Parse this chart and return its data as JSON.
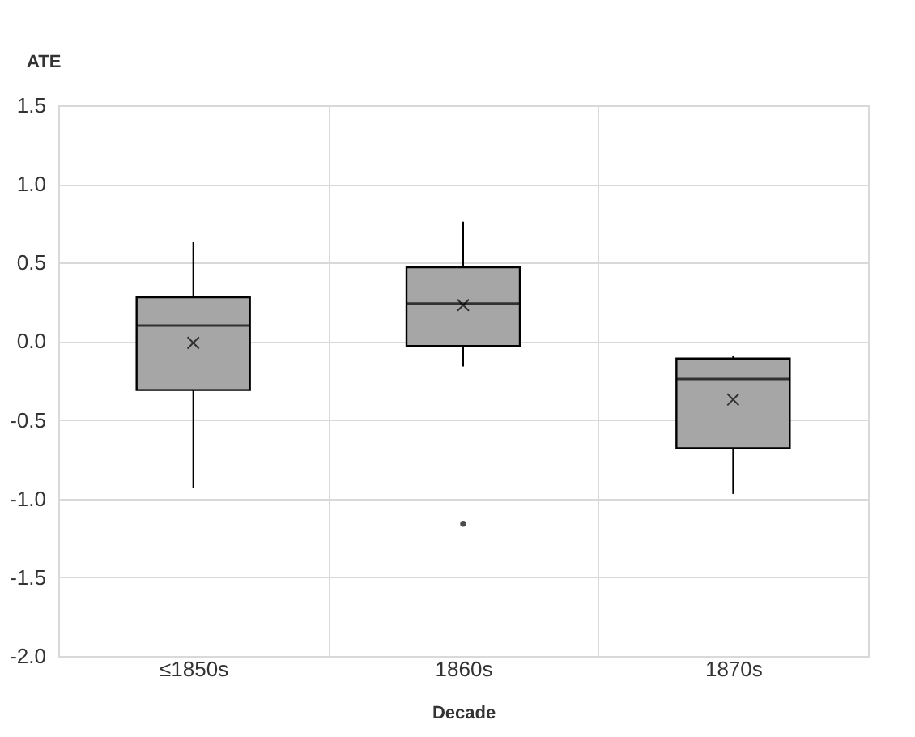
{
  "chart_data": {
    "type": "box",
    "xlabel": "Decade",
    "ylabel": "ATE",
    "categories": [
      "≤1850s",
      "1860s",
      "1870s"
    ],
    "boxes": [
      {
        "low": -0.93,
        "q1": -0.31,
        "median": 0.1,
        "q3": 0.28,
        "high": 0.63,
        "mean": -0.01
      },
      {
        "low": -0.16,
        "q1": -0.03,
        "median": 0.24,
        "q3": 0.47,
        "high": 0.76,
        "mean": 0.23,
        "outliers": [
          -1.16
        ]
      },
      {
        "low": -0.97,
        "q1": -0.68,
        "median": -0.24,
        "q3": -0.11,
        "high": -0.09,
        "mean": -0.37
      }
    ],
    "color": "#a6a6a6",
    "ylim": [
      -2.0,
      1.5
    ],
    "yticks": [
      {
        "value": -2,
        "label": "-2.0"
      },
      -1.5,
      {
        "value": -1,
        "label": "-1.0"
      },
      -0.5,
      {
        "value": 0,
        "label": "0.0"
      },
      0.5,
      {
        "value": 1,
        "label": "1.0"
      },
      1.5
    ],
    "grid": true
  }
}
